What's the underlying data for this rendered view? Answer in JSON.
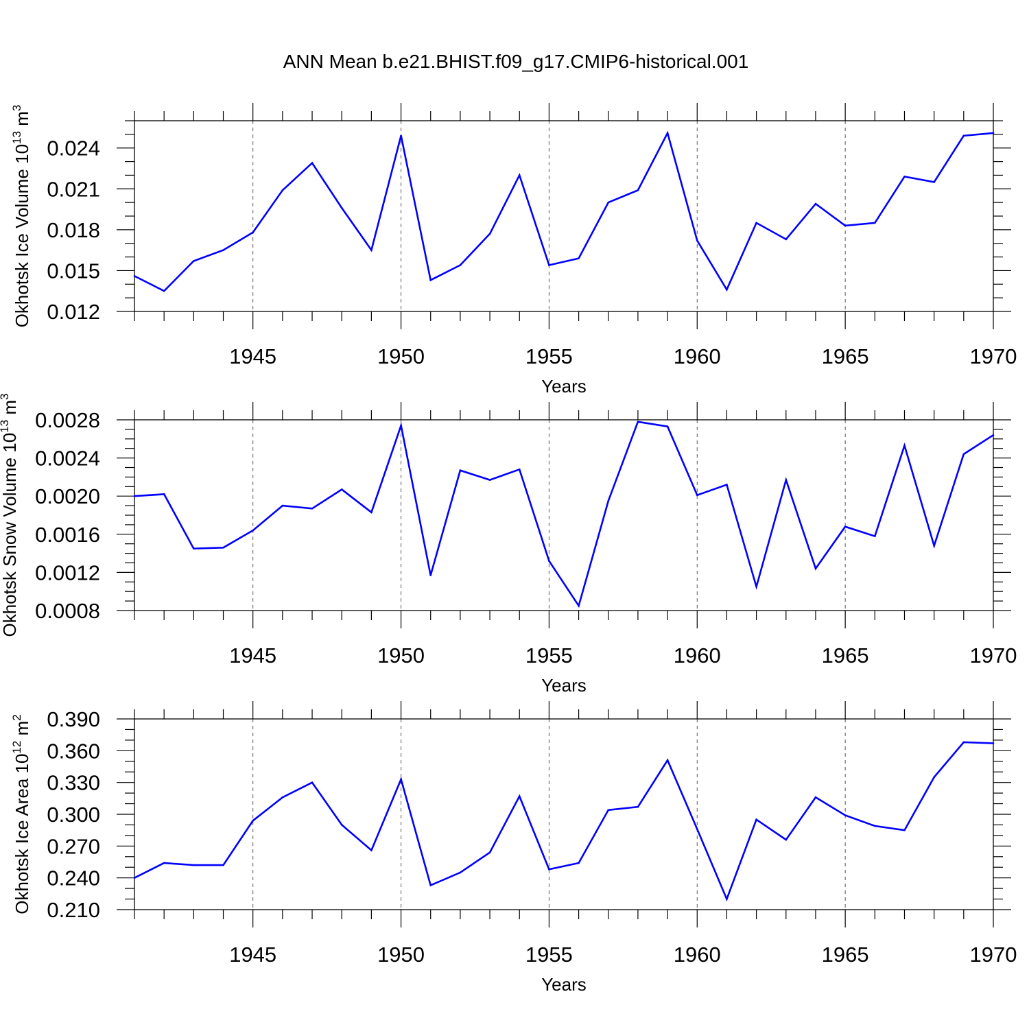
{
  "title": "ANN Mean b.e21.BHIST.f09_g17.CMIP6-historical.001",
  "colors": {
    "line": "#0000ff",
    "axis": "#000000",
    "grid": "#555555"
  },
  "chart_data": [
    {
      "type": "line",
      "name": "ice-volume",
      "ylabel": {
        "text": "Okhotsk Ice Volume 10",
        "sup": "13",
        "unit": " m",
        "unit_sup": "3"
      },
      "xlabel": "Years",
      "xlim": [
        1941,
        1970
      ],
      "xticks": [
        1945,
        1950,
        1955,
        1960,
        1965,
        1970
      ],
      "ylim": [
        0.012,
        0.026
      ],
      "yticks": [
        0.012,
        0.015,
        0.018,
        0.021,
        0.024
      ],
      "ytick_labels": [
        "0.012",
        "0.015",
        "0.018",
        "0.021",
        "0.024"
      ],
      "yminor_step": 0.001,
      "grid": "x-dashed",
      "x": [
        1941,
        1942,
        1943,
        1944,
        1945,
        1946,
        1947,
        1948,
        1949,
        1950,
        1951,
        1952,
        1953,
        1954,
        1955,
        1956,
        1957,
        1958,
        1959,
        1960,
        1961,
        1962,
        1963,
        1964,
        1965,
        1966,
        1967,
        1968,
        1969,
        1970
      ],
      "values": [
        0.0146,
        0.0135,
        0.0157,
        0.0165,
        0.0178,
        0.0209,
        0.0229,
        0.0196,
        0.0165,
        0.0249,
        0.0143,
        0.0154,
        0.0177,
        0.022,
        0.0154,
        0.0159,
        0.02,
        0.0209,
        0.0251,
        0.0172,
        0.0136,
        0.0185,
        0.0173,
        0.0199,
        0.0183,
        0.0185,
        0.0219,
        0.0215,
        0.0249,
        0.0251
      ]
    },
    {
      "type": "line",
      "name": "snow-volume",
      "ylabel": {
        "text": "Okhotsk Snow Volume 10",
        "sup": "13",
        "unit": " m",
        "unit_sup": "3"
      },
      "xlabel": "Years",
      "xlim": [
        1941,
        1970
      ],
      "xticks": [
        1945,
        1950,
        1955,
        1960,
        1965,
        1970
      ],
      "ylim": [
        0.0008,
        0.0028
      ],
      "yticks": [
        0.0008,
        0.0012,
        0.0016,
        0.002,
        0.0024,
        0.0028
      ],
      "ytick_labels": [
        "0.0008",
        "0.0012",
        "0.0016",
        "0.0020",
        "0.0024",
        "0.0028"
      ],
      "yminor_step": 0.0001,
      "grid": "x-dashed",
      "x": [
        1941,
        1942,
        1943,
        1944,
        1945,
        1946,
        1947,
        1948,
        1949,
        1950,
        1951,
        1952,
        1953,
        1954,
        1955,
        1956,
        1957,
        1958,
        1959,
        1960,
        1961,
        1962,
        1963,
        1964,
        1965,
        1966,
        1967,
        1968,
        1969,
        1970
      ],
      "values": [
        0.002,
        0.00202,
        0.00145,
        0.00146,
        0.00164,
        0.0019,
        0.00187,
        0.00207,
        0.00183,
        0.00274,
        0.00117,
        0.00227,
        0.00217,
        0.00228,
        0.00132,
        0.00085,
        0.00195,
        0.00278,
        0.00273,
        0.00201,
        0.00212,
        0.00105,
        0.00217,
        0.00124,
        0.00168,
        0.00158,
        0.00253,
        0.00148,
        0.00244,
        0.00264
      ]
    },
    {
      "type": "line",
      "name": "ice-area",
      "ylabel": {
        "text": "Okhotsk Ice Area 10",
        "sup": "12",
        "unit": " m",
        "unit_sup": "2"
      },
      "xlabel": "Years",
      "xlim": [
        1941,
        1970
      ],
      "xticks": [
        1945,
        1950,
        1955,
        1960,
        1965,
        1970
      ],
      "ylim": [
        0.21,
        0.39
      ],
      "yticks": [
        0.21,
        0.24,
        0.27,
        0.3,
        0.33,
        0.36,
        0.39
      ],
      "ytick_labels": [
        "0.210",
        "0.240",
        "0.270",
        "0.300",
        "0.330",
        "0.360",
        "0.390"
      ],
      "yminor_step": 0.01,
      "grid": "x-dashed",
      "x": [
        1941,
        1942,
        1943,
        1944,
        1945,
        1946,
        1947,
        1948,
        1949,
        1950,
        1951,
        1952,
        1953,
        1954,
        1955,
        1956,
        1957,
        1958,
        1959,
        1960,
        1961,
        1962,
        1963,
        1964,
        1965,
        1966,
        1967,
        1968,
        1969,
        1970
      ],
      "values": [
        0.24,
        0.254,
        0.252,
        0.252,
        0.294,
        0.316,
        0.33,
        0.29,
        0.266,
        0.333,
        0.233,
        0.245,
        0.264,
        0.317,
        0.248,
        0.254,
        0.304,
        0.307,
        0.351,
        0.286,
        0.22,
        0.295,
        0.276,
        0.316,
        0.299,
        0.289,
        0.285,
        0.335,
        0.368,
        0.367
      ]
    }
  ]
}
